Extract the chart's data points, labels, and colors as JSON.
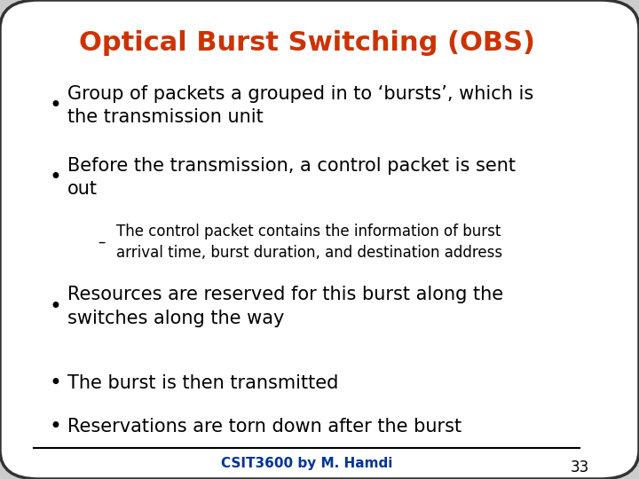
{
  "title": "Optical Burst Switching (OBS)",
  "title_color": "#CC3300",
  "background_color": "#FFFFFF",
  "slide_bg": "#CCCCCC",
  "border_color": "#333333",
  "text_color": "#000000",
  "bullet_points": [
    "Group of packets a grouped in to ‘bursts’, which is\nthe transmission unit",
    "Before the transmission, a control packet is sent\nout",
    "Resources are reserved for this burst along the\nswitches along the way",
    "The burst is then transmitted",
    "Reservations are torn down after the burst"
  ],
  "sub_bullet": "The control packet contains the information of burst\narrival time, burst duration, and destination address",
  "footer_text": "CSIT3600 by M. Hamdi",
  "footer_color": "#003399",
  "page_number": "33",
  "title_fontsize": 22,
  "bullet_fontsize": 15,
  "sub_bullet_fontsize": 12,
  "footer_fontsize": 11
}
